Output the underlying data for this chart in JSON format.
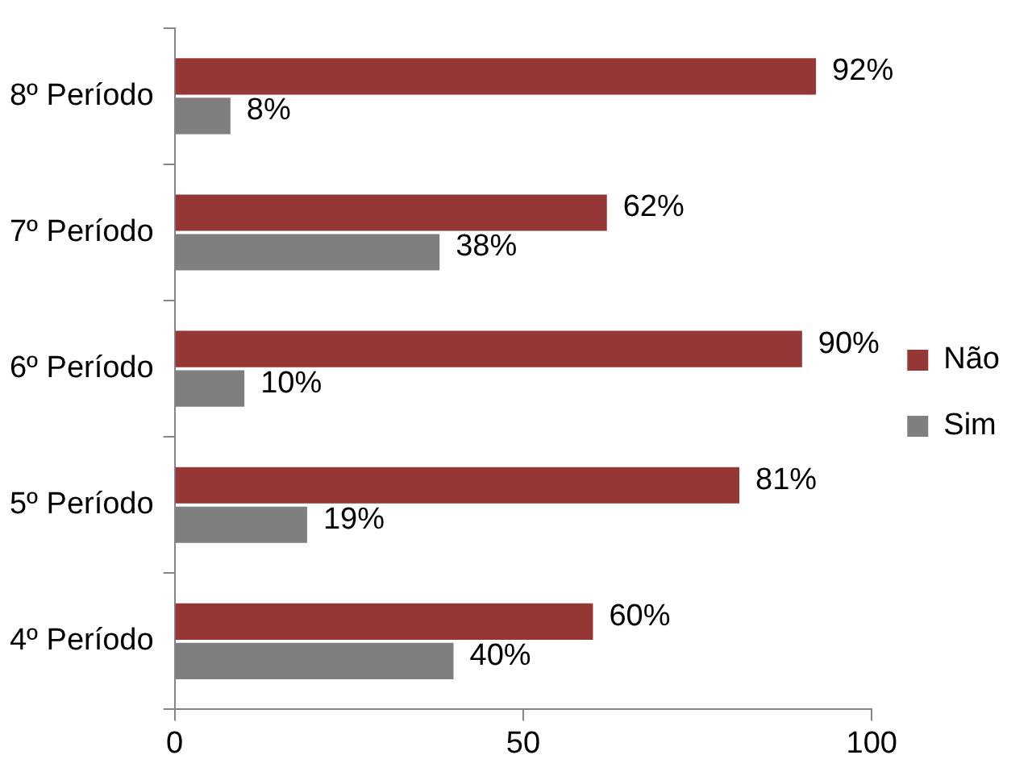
{
  "chart_data": {
    "type": "bar",
    "orientation": "horizontal",
    "categories": [
      "8º Período",
      "7º Período",
      "6º Período",
      "5º Período",
      "4º Período"
    ],
    "series": [
      {
        "name": "Não",
        "color": "#953735",
        "values": [
          92,
          62,
          90,
          81,
          60
        ],
        "value_labels": [
          "92%",
          "62%",
          "90%",
          "81%",
          "60%"
        ]
      },
      {
        "name": "Sim",
        "color": "#7f7f7f",
        "values": [
          8,
          38,
          10,
          19,
          40
        ],
        "value_labels": [
          "8%",
          "38%",
          "10%",
          "19%",
          "40%"
        ]
      }
    ],
    "xlim": [
      0,
      100
    ],
    "xticks": [
      0,
      50,
      100
    ],
    "grid": false,
    "legend": "right"
  }
}
